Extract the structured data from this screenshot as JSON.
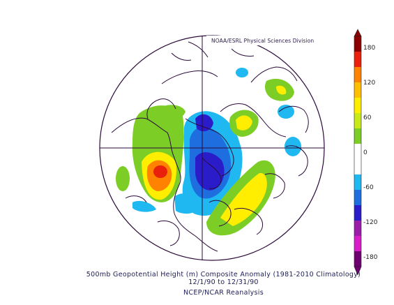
{
  "credit": "NOAA/ESRL Physical Sciences Division",
  "caption": {
    "line1": "500mb Geopotential Height (m) Composite Anomaly (1981-2010 Climatology)",
    "line2": "12/1/90  to 12/31/90",
    "line3": "NCEP/NCAR Reanalysis"
  },
  "colorbar": {
    "labels": [
      "180",
      "120",
      "60",
      "0",
      "-60",
      "-120",
      "-180"
    ],
    "colors": [
      "#8c0000",
      "#e8200c",
      "#ff8200",
      "#ffbe00",
      "#ffee00",
      "#c8ea1a",
      "#7cce26",
      "#ffffff",
      "#ffffff",
      "#20b8f0",
      "#1e6ee0",
      "#2a1cc8",
      "#9a1ca8",
      "#d81cc8",
      "#6e0070"
    ]
  },
  "anomaly_colors": {
    "positive_weak": "#7cce26",
    "positive_mid": "#ffee00",
    "positive_strong": "#ff8200",
    "positive_max": "#e8200c",
    "negative_weak": "#20b8f0",
    "negative_mid": "#1e6ee0",
    "negative_strong": "#2a1cc8",
    "outline": "#2a0a3a"
  }
}
